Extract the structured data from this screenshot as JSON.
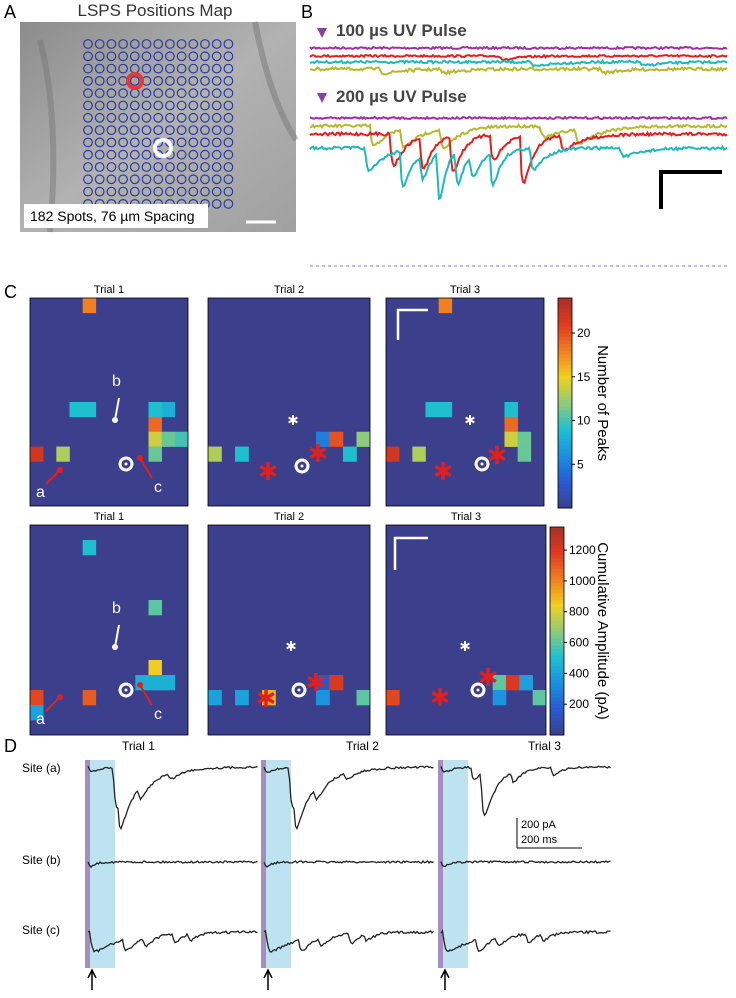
{
  "panels": {
    "A": {
      "label": "A",
      "title": "LSPS Positions Map",
      "caption": "182 Spots, 76 µm Spacing"
    },
    "B": {
      "label": "B",
      "pulses": [
        "100 µs UV Pulse",
        "200 µs UV Pulse"
      ]
    },
    "C": {
      "label": "C",
      "colormap": [
        "#3b3f8c",
        "#2a5ad0",
        "#1b8fe0",
        "#1ec0d0",
        "#8ecb7a",
        "#f0d020",
        "#f08020",
        "#e03a20",
        "#a83028"
      ],
      "site_labels": [
        "a",
        "b",
        "c"
      ],
      "colorbars": [
        {
          "label": "Number of Peaks",
          "clim": [
            0,
            24
          ],
          "ticks": [
            5,
            10,
            15,
            20
          ]
        },
        {
          "label": "Cumulative Amplitude (pA)",
          "clim": [
            0,
            1350
          ],
          "ticks": [
            200,
            400,
            600,
            800,
            1000,
            1200
          ]
        }
      ],
      "maps": [
        {
          "title": "Trial 1",
          "colorbar": 0,
          "cells": [
            [
              4,
              0,
              18
            ],
            [
              3,
              7,
              9
            ],
            [
              4,
              7,
              9
            ],
            [
              9,
              7,
              9
            ],
            [
              10,
              7,
              8
            ],
            [
              9,
              8,
              19
            ],
            [
              9,
              9,
              14
            ],
            [
              10,
              9,
              11
            ],
            [
              11,
              9,
              10
            ],
            [
              0,
              10,
              22
            ],
            [
              2,
              10,
              13
            ],
            [
              9,
              10,
              11
            ]
          ]
        },
        {
          "title": "Trial 2",
          "colorbar": 0,
          "cells": [
            [
              0,
              10,
              13
            ],
            [
              2,
              10,
              9
            ],
            [
              8,
              9,
              5
            ],
            [
              9,
              9,
              20
            ],
            [
              11,
              9,
              12
            ],
            [
              10,
              10,
              9
            ]
          ]
        },
        {
          "title": "Trial 3",
          "colorbar": 0,
          "cells": [
            [
              4,
              0,
              18
            ],
            [
              3,
              7,
              9
            ],
            [
              4,
              7,
              9
            ],
            [
              9,
              7,
              9
            ],
            [
              9,
              8,
              19
            ],
            [
              9,
              9,
              14
            ],
            [
              10,
              9,
              11
            ],
            [
              0,
              10,
              22
            ],
            [
              2,
              10,
              13
            ],
            [
              10,
              10,
              11
            ]
          ]
        },
        {
          "title": "Trial 1",
          "colorbar": 1,
          "cells": [
            [
              4,
              1,
              500
            ],
            [
              9,
              5,
              600
            ],
            [
              9,
              9,
              850
            ],
            [
              8,
              10,
              450
            ],
            [
              9,
              10,
              450
            ],
            [
              10,
              10,
              450
            ],
            [
              0,
              11,
              1150
            ],
            [
              4,
              11,
              1100
            ],
            [
              0,
              12,
              400
            ]
          ]
        },
        {
          "title": "Trial 2",
          "colorbar": 1,
          "cells": [
            [
              0,
              11,
              400
            ],
            [
              2,
              11,
              400
            ],
            [
              4,
              11,
              900
            ],
            [
              8,
              10,
              150
            ],
            [
              9,
              10,
              1200
            ],
            [
              8,
              11,
              350
            ],
            [
              11,
              11,
              600
            ]
          ]
        },
        {
          "title": "Trial 3",
          "colorbar": 1,
          "cells": [
            [
              0,
              11,
              1150
            ],
            [
              8,
              10,
              600
            ],
            [
              9,
              10,
              1200
            ],
            [
              10,
              10,
              400
            ],
            [
              11,
              11,
              600
            ],
            [
              8,
              11,
              350
            ]
          ]
        }
      ]
    },
    "D": {
      "label": "D",
      "trials": [
        "Trial 1",
        "Trial 2",
        "Trial 3"
      ],
      "sites": [
        "Site (a)",
        "Site (b)",
        "Site (c)"
      ],
      "scale": [
        "200 pA",
        "200 ms"
      ]
    }
  }
}
